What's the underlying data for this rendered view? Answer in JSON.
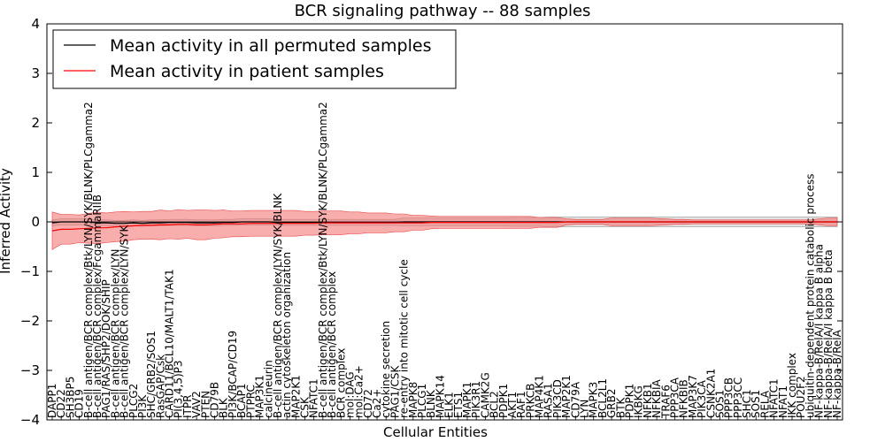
{
  "chart_data": {
    "type": "line",
    "title": "BCR signaling pathway -- 88 samples",
    "xlabel": "Cellular Entities",
    "ylabel": "Inferred Activity",
    "ylim": [
      -4,
      4
    ],
    "yticks": [
      4,
      3,
      2,
      1,
      0,
      -1,
      -2,
      -3,
      -4
    ],
    "ytick_labels": [
      "4",
      "3",
      "2",
      "1",
      "0",
      "−1",
      "−2",
      "−3",
      "−4"
    ],
    "legend_position": "upper-left",
    "categories": [
      "DAPP1",
      "CD22",
      "SH3BP5",
      "CD19",
      "B-cell antigen/BCR complex/Btk/LYN/SYK/BLNK/PLCgamma2",
      "B-cell antigen/BCR complex/FcgammaRIIB",
      "PAG1/RAS/SHP2/DOK/SHIP",
      "B-cell antigen/BCR complex/LYN",
      "B-cell antigen/BCR complex/LYN/SYK",
      "PLCG2",
      "PI3K",
      "SHC/GRB2/SOS1",
      "RasGAP/Csk",
      "CARD11/BCL10/MALT1/TAK1",
      "PI(3,4,5)P3",
      "ITPR",
      "VAV2",
      "PTEN",
      "CD79B",
      "BLK",
      "PI3K/BCAP/CD19",
      "BCAP1",
      "PTPRC",
      "MAP3K1",
      "calcineurin",
      "B-cell antigen/BCR complex/LYN/SYK/BLNK",
      "actin cytoskeleton organization",
      "MAP2K1",
      "CSK",
      "NFATC1",
      "B-cell antigen/BCR complex/Btk/LYN/SYK/BLNK/PLCgamma2",
      "B-cell antigen/BCR complex",
      "BCR complex",
      "mol:DAG",
      "mol:Ca2+",
      "CD72",
      "Ca2+",
      "cytokine secretion",
      "PAG1/CSK",
      "re-entry into mitotic cell cycle",
      "MAPK8",
      "PLCG1",
      "BLNK",
      "MAPK14",
      "ELK1",
      "ETS1",
      "MAPK1",
      "PIK3R1",
      "CAMK2G",
      "BCL2",
      "PDPK1",
      "AKT1",
      "RAF1",
      "PRKCB",
      "MAP4K1",
      "RASA1",
      "PIK3CD",
      "MAP2K1",
      "CD79A",
      "LYN",
      "MAPK3",
      "BCL2L1",
      "GRB2",
      "BTK",
      "PDPK1",
      "IKBKG",
      "NFKB1",
      "NFKBIA",
      "TRAF6",
      "PPP3CA",
      "NFKBIB",
      "MAP3K7",
      "PIK3CA",
      "CSNK2A1",
      "SOS1",
      "PPP3CB",
      "PPP3CC",
      "SHC1",
      "SOS1",
      "RELA",
      "NFATC1",
      "NFAT1",
      "IKK complex",
      "POU2F2",
      "ubiquitin-dependent protein catabolic process",
      "NF-kappa-B/RelA/I kappa B alpha",
      "NF-kappa-B/RelA/I kappa B beta",
      "NF-kappa-B/RelA"
    ],
    "series": [
      {
        "name": "Mean activity in all permuted samples",
        "color": "#000000",
        "band_color": "#cccccc",
        "values": [
          -0.02,
          0.0,
          0.0,
          0.0,
          0.0,
          -0.02,
          -0.02,
          -0.03,
          -0.03,
          -0.02,
          -0.03,
          -0.02,
          -0.02,
          -0.01,
          -0.01,
          -0.01,
          -0.02,
          -0.02,
          -0.02,
          -0.01,
          -0.01,
          0.0,
          0.0,
          0.0,
          0.0,
          -0.01,
          -0.01,
          -0.01,
          -0.01,
          -0.01,
          -0.01,
          -0.01,
          -0.01,
          -0.01,
          -0.01,
          -0.01,
          -0.01,
          -0.01,
          -0.01,
          0.0,
          0.0,
          0.0,
          0.0,
          0.0,
          0.0,
          0.0,
          0.0,
          0.0,
          0.0,
          0.0,
          0.0,
          0.0,
          0.0,
          0.0,
          0.0,
          0.0,
          0.0,
          0.0,
          0.0,
          0.0,
          0.0,
          0.0,
          0.0,
          0.0,
          0.0,
          0.0,
          0.0,
          0.0,
          0.0,
          0.0,
          0.0,
          0.0,
          0.0,
          0.0,
          0.0,
          0.0,
          0.0,
          0.0,
          0.0,
          0.0,
          0.0,
          0.0,
          0.0,
          0.0,
          0.0,
          0.0,
          0.0,
          0.0
        ],
        "band": [
          0.06,
          0.06,
          0.06,
          0.06,
          0.06,
          0.06,
          0.06,
          0.06,
          0.06,
          0.06,
          0.06,
          0.06,
          0.06,
          0.06,
          0.06,
          0.06,
          0.06,
          0.06,
          0.06,
          0.06,
          0.06,
          0.06,
          0.06,
          0.06,
          0.06,
          0.06,
          0.06,
          0.06,
          0.06,
          0.06,
          0.06,
          0.06,
          0.06,
          0.06,
          0.06,
          0.06,
          0.06,
          0.06,
          0.06,
          0.08,
          0.08,
          0.08,
          0.08,
          0.08,
          0.08,
          0.08,
          0.08,
          0.08,
          0.08,
          0.08,
          0.08,
          0.09,
          0.09,
          0.09,
          0.09,
          0.1,
          0.1,
          0.1,
          0.1,
          0.1,
          0.1,
          0.1,
          0.1,
          0.1,
          0.1,
          0.1,
          0.1,
          0.1,
          0.1,
          0.1,
          0.1,
          0.1,
          0.1,
          0.1,
          0.1,
          0.1,
          0.1,
          0.1,
          0.1,
          0.1,
          0.1,
          0.1,
          0.1,
          0.1,
          0.1,
          0.1,
          0.1,
          0.1
        ]
      },
      {
        "name": "Mean activity in patient samples",
        "color": "#ff0000",
        "band_color": "#f46c6c",
        "values": [
          -0.18,
          -0.15,
          -0.15,
          -0.14,
          -0.13,
          -0.12,
          -0.12,
          -0.1,
          -0.09,
          -0.08,
          -0.07,
          -0.07,
          -0.06,
          -0.06,
          -0.05,
          -0.05,
          -0.06,
          -0.06,
          -0.05,
          -0.04,
          -0.04,
          -0.04,
          -0.03,
          -0.03,
          -0.03,
          -0.03,
          -0.03,
          -0.03,
          -0.03,
          -0.03,
          -0.02,
          -0.02,
          -0.02,
          -0.02,
          -0.02,
          -0.02,
          -0.02,
          -0.02,
          -0.02,
          -0.02,
          -0.02,
          -0.02,
          -0.01,
          -0.01,
          -0.01,
          -0.01,
          -0.01,
          -0.01,
          -0.01,
          -0.01,
          -0.01,
          -0.01,
          -0.01,
          -0.01,
          -0.01,
          -0.01,
          -0.01,
          0.0,
          0.0,
          0.0,
          0.0,
          0.0,
          0.0,
          0.0,
          0.0,
          0.0,
          0.0,
          0.0,
          0.0,
          0.0,
          0.0,
          0.0,
          0.0,
          0.0,
          0.0,
          0.0,
          0.0,
          0.0,
          0.0,
          0.0,
          0.0,
          0.0,
          0.0,
          0.0,
          0.0,
          0.0,
          0.0,
          0.0
        ],
        "band": [
          0.38,
          0.3,
          0.3,
          0.28,
          0.3,
          0.32,
          0.3,
          0.3,
          0.3,
          0.28,
          0.28,
          0.28,
          0.3,
          0.28,
          0.3,
          0.28,
          0.3,
          0.3,
          0.28,
          0.28,
          0.26,
          0.26,
          0.26,
          0.26,
          0.26,
          0.26,
          0.26,
          0.26,
          0.24,
          0.24,
          0.24,
          0.24,
          0.24,
          0.22,
          0.22,
          0.2,
          0.2,
          0.2,
          0.18,
          0.18,
          0.15,
          0.15,
          0.13,
          0.12,
          0.12,
          0.12,
          0.12,
          0.12,
          0.12,
          0.12,
          0.12,
          0.12,
          0.12,
          0.12,
          0.1,
          0.1,
          0.1,
          0.06,
          0.05,
          0.05,
          0.05,
          0.05,
          0.08,
          0.08,
          0.08,
          0.08,
          0.08,
          0.07,
          0.06,
          0.05,
          0.05,
          0.04,
          0.04,
          0.04,
          0.04,
          0.04,
          0.04,
          0.04,
          0.04,
          0.04,
          0.04,
          0.04,
          0.04,
          0.04,
          0.04,
          0.06,
          0.08,
          0.08
        ]
      }
    ]
  }
}
